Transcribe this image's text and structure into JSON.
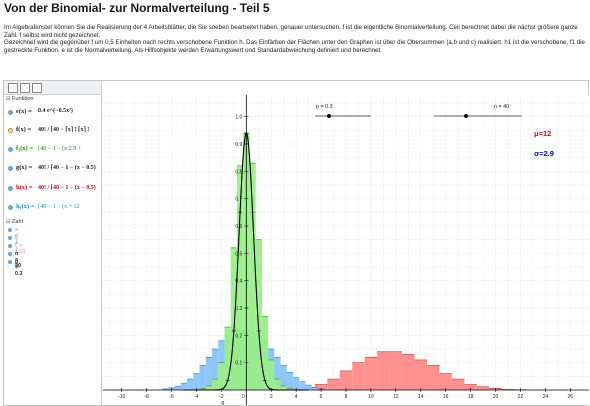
{
  "page": {
    "title": "Von der Binomial- zur Normalverteilung - Teil 5",
    "description": [
      "Im Algebrafenster können Sie die Realisierung der 4 Arbeitsblätter, die Sie soeben bearbeitet haben, genauer untersuchen. f ist die eigentliche Binomialverteilung. Ceil berechnet dabei die nächst größere ganze Zahl. f selbst wird nicht gezeichnet.",
      "Gezeichnet wird die gegenüber f um 0,5 Einheiten nach rechts verschobene Funktion h. Das Einfärben der Flächen unter den Graphen ist über die Obersummen (a,b und c) realisiert. h1 ist die verschobene, f1 die gestreckte Funktion. e ist die Normalverteilung. Als Hilfsobjekte werden Erwartungswert und Standardabweichung definiert und berechnet."
    ]
  },
  "algebra": {
    "category_functions": "Funktion",
    "functions": [
      {
        "name": "e(x) =",
        "expr": "0.4 e^(−0.5x²)",
        "color": "#000000"
      },
      {
        "name": "f(x) =",
        "expr": "40! / ⌈40 − ⌈x⌉ ! ⌈x⌉ !",
        "color": "#000000"
      },
      {
        "name": "f₁(x) =",
        "expr": "⌈40 − 1 − (x 2.9 +",
        "color": "#009900"
      },
      {
        "name": "g(x) =",
        "expr": "40! / ⌈40 − 1 − (x − 0.5)",
        "color": "#000000"
      },
      {
        "name": "h(x) =",
        "expr": "40! / ⌈40 − 1 − (x − 0.5)",
        "color": "#cc0000"
      },
      {
        "name": "h₁(x) =",
        "expr": "⌈40 − 1 − (x + 12",
        "color": "#0099cc"
      }
    ],
    "category_numbers": "Zahl",
    "numbers": [
      {
        "label": "a = 1",
        "color": "#66cc66"
      },
      {
        "label": "b = 1",
        "color": "#66aaff"
      },
      {
        "label": "c = 1.01",
        "color": "#ff8888"
      },
      {
        "label": "n = 40",
        "color": "#000000"
      },
      {
        "label": "p = 0.3",
        "color": "#000000"
      }
    ]
  },
  "graph": {
    "slider_p_label": "p = 0.3",
    "slider_n_label": "n = 40",
    "mu_label": "μ=12",
    "sigma_label": "σ=2.9",
    "x_axis_label": "g",
    "colors": {
      "green": "#99ee88",
      "blue": "#88c4ff",
      "red": "#ff8a8a",
      "mu": "#dd0000",
      "sigma": "#0000cc"
    }
  },
  "chart_data": {
    "type": "area",
    "x_ticks": [
      -10,
      -8,
      -6,
      -4,
      -2,
      0,
      2,
      4,
      6,
      8,
      10,
      12,
      14,
      16,
      18,
      20,
      22,
      24,
      26
    ],
    "y_ticks": [
      0.1,
      0.2,
      0.3,
      0.4,
      0.5,
      0.6,
      0.7,
      0.8,
      0.9,
      1.0
    ],
    "xlim": [
      -11.5,
      27.5
    ],
    "ylim": [
      0,
      1.05
    ],
    "series": [
      {
        "name": "h",
        "x": [
          4,
          5,
          6,
          7,
          8,
          9,
          10,
          11,
          12,
          13,
          14,
          15,
          16,
          17,
          18,
          19,
          20,
          21,
          22
        ],
        "values": [
          0.003,
          0.008,
          0.02,
          0.04,
          0.07,
          0.1,
          0.12,
          0.14,
          0.14,
          0.13,
          0.11,
          0.09,
          0.06,
          0.04,
          0.02,
          0.012,
          0.006,
          0.002,
          0.001
        ]
      },
      {
        "name": "h₁",
        "x": [
          -6.5,
          -6,
          -5.5,
          -5,
          -4.5,
          -4,
          -3.5,
          -3,
          -2.5,
          -2,
          -1.5,
          -1,
          -0.5,
          0,
          0.5,
          1,
          1.5,
          2,
          2.5,
          3,
          3.5,
          4,
          4.5,
          5,
          5.5,
          6
        ],
        "values": [
          0.004,
          0.008,
          0.014,
          0.025,
          0.04,
          0.06,
          0.09,
          0.12,
          0.15,
          0.18,
          0.2,
          0.22,
          0.22,
          0.22,
          0.21,
          0.2,
          0.18,
          0.15,
          0.12,
          0.09,
          0.065,
          0.045,
          0.03,
          0.018,
          0.01,
          0.004
        ]
      },
      {
        "name": "f₁",
        "x": [
          -4,
          -3.5,
          -3,
          -2.5,
          -2,
          -1.5,
          -1,
          -0.5,
          0,
          0.5,
          1,
          1.5,
          2,
          2.5,
          3,
          3.5,
          4
        ],
        "values": [
          0.001,
          0.005,
          0.015,
          0.04,
          0.1,
          0.23,
          0.52,
          0.82,
          0.94,
          0.83,
          0.55,
          0.27,
          0.11,
          0.04,
          0.015,
          0.005,
          0.001
        ]
      },
      {
        "name": "e",
        "type": "line",
        "formula": "0.4 e^(-0.5x²)"
      }
    ]
  }
}
